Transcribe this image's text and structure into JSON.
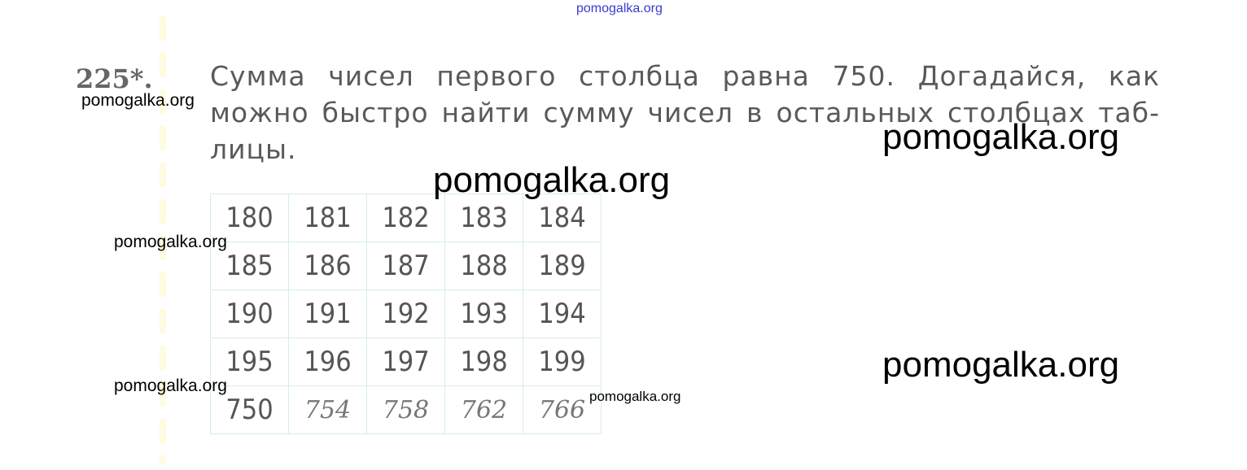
{
  "task": {
    "number": "225*.",
    "lines": [
      "Сумма чисел первого столбца равна 750. Догадайся, как",
      "можно быстро найти сумму чисел в остальных столбцах таб-",
      "лицы."
    ]
  },
  "table": {
    "rows": [
      [
        "180",
        "181",
        "182",
        "183",
        "184"
      ],
      [
        "185",
        "186",
        "187",
        "188",
        "189"
      ],
      [
        "190",
        "191",
        "192",
        "193",
        "194"
      ],
      [
        "195",
        "196",
        "197",
        "198",
        "199"
      ]
    ],
    "sums": [
      "750",
      "754",
      "758",
      "762",
      "766"
    ]
  },
  "watermarks": {
    "top": "pomogalka.org",
    "left1": "pomogalka.org",
    "right1": "pomogalka.org",
    "center": "pomogalka.org",
    "left2": "pomogalka.org",
    "right2": "pomogalka.org",
    "left3": "pomogalka.org",
    "table": "pomogalka.org"
  }
}
